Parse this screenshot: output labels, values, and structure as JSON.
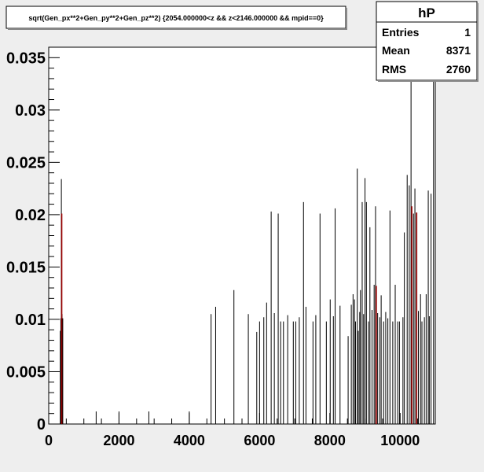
{
  "chart_data": {
    "type": "bar",
    "title": "sqrt(Gen_px**2+Gen_py**2+Gen_pz**2) {2054.000000<z && z<2146.000000 && mpid==0}",
    "xlim": [
      0,
      11000
    ],
    "ylim": [
      0,
      0.036
    ],
    "x_ticks": [
      0,
      2000,
      4000,
      6000,
      8000,
      10000
    ],
    "x_tick_labels": [
      "0",
      "2000",
      "4000",
      "6000",
      "8000",
      "10000"
    ],
    "y_ticks": [
      0,
      0.005,
      0.01,
      0.015,
      0.02,
      0.025,
      0.03,
      0.035
    ],
    "y_tick_labels": [
      "0",
      "0.005",
      "0.01",
      "0.015",
      "0.02",
      "0.025",
      "0.03",
      "0.035"
    ],
    "grid": false,
    "stats_box": {
      "title": "hP",
      "rows": [
        {
          "label": "Entries",
          "value": "1"
        },
        {
          "label": "Mean",
          "value": "8371"
        },
        {
          "label": "RMS",
          "value": "2760"
        }
      ]
    },
    "colors": {
      "primary": "#000000",
      "overlay": "#990000",
      "background": "#ffffff",
      "frame": "#eeeeee"
    },
    "series": [
      {
        "x": [
          330,
          345,
          360,
          380,
          400,
          1350,
          2000,
          2850,
          4000,
          4620,
          4750,
          5270,
          5680,
          5920,
          6000,
          6120,
          6200,
          6330,
          6420,
          6530,
          6600,
          6680,
          6800,
          6960,
          7030,
          7130,
          7250,
          7320,
          7520,
          7600,
          7720,
          7900,
          8010,
          8100,
          8150,
          8290,
          8520,
          8610,
          8660,
          8700,
          8730,
          8780,
          8810,
          8850,
          8870,
          8920,
          8960,
          9000,
          9040,
          9100,
          9140,
          9200,
          9260,
          9300,
          9360,
          9420,
          9460,
          9530,
          9590,
          9650,
          9710,
          9790,
          9860,
          9930,
          9980,
          10080,
          10120,
          10200,
          10260,
          10310,
          10380,
          10420,
          10460,
          10520,
          10580,
          10620,
          10690,
          10740,
          10800,
          10830,
          10880,
          10950
        ],
        "y": [
          0.0089,
          0.0101,
          0.0234,
          0.0105,
          0.0101,
          0.0012,
          0.0012,
          0.0012,
          0.0012,
          0.0105,
          0.0112,
          0.0128,
          0.0105,
          0.0088,
          0.0098,
          0.0102,
          0.0116,
          0.0203,
          0.0106,
          0.0201,
          0.0098,
          0.0098,
          0.0104,
          0.0098,
          0.0098,
          0.0102,
          0.0212,
          0.0112,
          0.0098,
          0.0104,
          0.0201,
          0.0098,
          0.0119,
          0.0103,
          0.0206,
          0.0113,
          0.0084,
          0.0114,
          0.0124,
          0.0119,
          0.0098,
          0.0244,
          0.0089,
          0.0107,
          0.0128,
          0.0212,
          0.0105,
          0.0235,
          0.0212,
          0.0098,
          0.0188,
          0.0109,
          0.0133,
          0.0208,
          0.0106,
          0.0102,
          0.0123,
          0.0098,
          0.0107,
          0.0101,
          0.0204,
          0.0098,
          0.0133,
          0.0098,
          0.0098,
          0.0102,
          0.0183,
          0.0238,
          0.0228,
          0.0363,
          0.0201,
          0.0225,
          0.0202,
          0.0108,
          0.0124,
          0.0098,
          0.0102,
          0.0124,
          0.0223,
          0.0103,
          0.022,
          0.0363
        ]
      },
      {
        "x": [
          370,
          9320,
          10330,
          10470
        ],
        "y": [
          0.0201,
          0.0132,
          0.0208,
          0.0202
        ]
      }
    ]
  }
}
